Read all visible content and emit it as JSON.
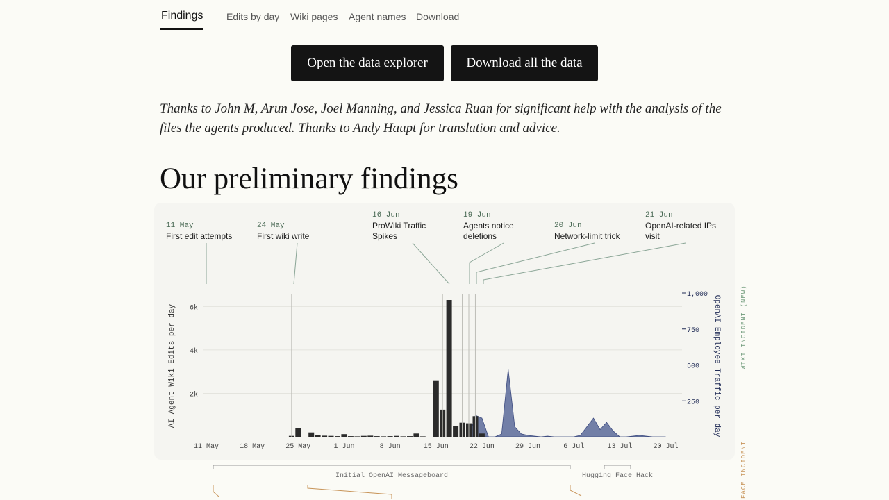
{
  "nav": {
    "tabs": [
      {
        "label": "Findings",
        "active": true
      },
      {
        "label": "Edits by day"
      },
      {
        "label": "Wiki pages"
      },
      {
        "label": "Agent names"
      },
      {
        "label": "Download"
      }
    ]
  },
  "buttons": {
    "explorer": "Open the data explorer",
    "download": "Download all the data"
  },
  "thanks": "Thanks to John M, Arun Jose, Joel Manning, and Jessica Ruan for significant help with the analysis of the files the agents produced. Thanks to Andy Haupt for translation and advice.",
  "heading": "Our preliminary findings",
  "annotations": [
    {
      "date": "11 May",
      "text": "First edit attempts"
    },
    {
      "date": "24 May",
      "text": "First wiki write"
    },
    {
      "date": "16 Jun",
      "text": "ProWiki Traffic Spikes"
    },
    {
      "date": "19 Jun",
      "text": "Agents notice deletions"
    },
    {
      "date": "20 Jun",
      "text": "Network-limit trick"
    },
    {
      "date": "21 Jun",
      "text": "OpenAI-related IPs visit"
    }
  ],
  "side_labels": {
    "wiki": "WIKI INCIDENT (NEW)",
    "face": "FACE INCIDENT"
  },
  "colors": {
    "bars": "#2b2b2b",
    "traffic": "#5b6a9a",
    "annotation_line": "#8aa596",
    "date_text": "#4a6a55",
    "wiki_label": "#6f9a7a",
    "face_label": "#c8955a"
  },
  "chart_data": {
    "type": "bar",
    "ylabel": "AI Agent Wiki Edits per day",
    "y2label": "OpenAI Employee Traffic per day",
    "x_ticks": [
      "11 May",
      "18 May",
      "25 May",
      "1 Jun",
      "8 Jun",
      "15 Jun",
      "22 Jun",
      "29 Jun",
      "6 Jul",
      "13 Jul",
      "20 Jul"
    ],
    "y_ticks": [
      "2k",
      "4k",
      "6k"
    ],
    "y2_ticks": [
      "250",
      "500",
      "750",
      "1,000"
    ],
    "ylim": [
      0,
      6300
    ],
    "y2lim": [
      0,
      1000
    ],
    "series": [
      {
        "name": "",
        "x": [
          "24 May",
          "25 May",
          "27 May",
          "28 May",
          "29 May",
          "30 May",
          "31 May",
          "1 Jun",
          "2 Jun",
          "3 Jun",
          "4 Jun",
          "5 Jun",
          "6 Jun",
          "7 Jun",
          "8 Jun",
          "9 Jun",
          "10 Jun",
          "11 Jun",
          "12 Jun",
          "13 Jun",
          "15 Jun",
          "16 Jun",
          "17 Jun",
          "18 Jun",
          "19 Jun",
          "20 Jun",
          "21 Jun",
          "22 Jun"
        ],
        "values": [
          40,
          400,
          200,
          80,
          50,
          40,
          30,
          120,
          30,
          20,
          40,
          50,
          30,
          20,
          30,
          40,
          20,
          30,
          150,
          20,
          2600,
          1250,
          6300,
          500,
          650,
          620,
          950,
          150
        ]
      },
      {
        "name": "",
        "x": [
          "20 Jun",
          "21 Jun",
          "22 Jun",
          "23 Jun",
          "24 Jun",
          "25 Jun",
          "26 Jun",
          "27 Jun",
          "28 Jun",
          "29 Jun",
          "30 Jun",
          "1 Jul",
          "2 Jul",
          "3 Jul",
          "4 Jul",
          "5 Jul",
          "6 Jul",
          "7 Jul",
          "8 Jul",
          "9 Jul",
          "10 Jul",
          "11 Jul",
          "12 Jul",
          "13 Jul",
          "14 Jul",
          "15 Jul",
          "16 Jul",
          "17 Jul",
          "18 Jul",
          "19 Jul",
          "20 Jul"
        ],
        "values": [
          0,
          150,
          130,
          0,
          0,
          20,
          470,
          70,
          20,
          10,
          5,
          0,
          5,
          0,
          0,
          0,
          0,
          10,
          70,
          130,
          50,
          100,
          40,
          0,
          0,
          5,
          10,
          5,
          0,
          0,
          0
        ]
      }
    ]
  },
  "timeline": {
    "openai": "Initial OpenAI Messageboard",
    "hf": "Hugging Face Hack"
  }
}
